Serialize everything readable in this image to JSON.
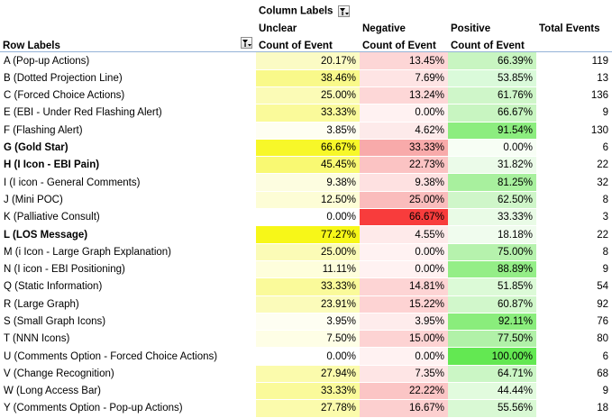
{
  "header": {
    "column_labels": "Column Labels",
    "row_labels": "Row Labels",
    "groups": [
      "Unclear",
      "Negative",
      "Positive",
      "Total Events"
    ],
    "measure": "Count of Event"
  },
  "icons": {
    "column_filter": "filter-dropdown-icon",
    "row_filter": "filter-dropdown-icon"
  },
  "rows": [
    {
      "label": "A (Pop-up Actions)",
      "bold": false,
      "unclear": "20.17%",
      "negative": "13.45%",
      "positive": "66.39%",
      "total": "119",
      "unclear_color": "#fbfbc4",
      "negative_color": "#fdd6d6",
      "positive_color": "#c8f5c1"
    },
    {
      "label": "B (Dotted Projection Line)",
      "bold": false,
      "unclear": "38.46%",
      "negative": "7.69%",
      "positive": "53.85%",
      "total": "13",
      "unclear_color": "#f9f98a",
      "negative_color": "#fee4e4",
      "positive_color": "#dafada"
    },
    {
      "label": "C (Forced Choice Actions)",
      "bold": false,
      "unclear": "25.00%",
      "negative": "13.24%",
      "positive": "61.76%",
      "total": "136",
      "unclear_color": "#fbfbb6",
      "negative_color": "#fdd7d7",
      "positive_color": "#cff6c9"
    },
    {
      "label": "E (EBI - Under Red Flashing Alert)",
      "bold": false,
      "unclear": "33.33%",
      "negative": "0.00%",
      "positive": "66.67%",
      "total": "9",
      "unclear_color": "#fafa9a",
      "negative_color": "#fff2f2",
      "positive_color": "#c8f5c1"
    },
    {
      "label": "F (Flashing Alert)",
      "bold": false,
      "unclear": "3.85%",
      "negative": "4.62%",
      "positive": "91.54%",
      "total": "130",
      "unclear_color": "#fefef2",
      "negative_color": "#fdeaea",
      "positive_color": "#8ced7f"
    },
    {
      "label": "G (Gold Star)",
      "bold": true,
      "unclear": "66.67%",
      "negative": "33.33%",
      "positive": "0.00%",
      "total": "6",
      "unclear_color": "#f7f729",
      "negative_color": "#f8aaaa",
      "positive_color": "#f7fef5"
    },
    {
      "label": "H (I Icon - EBI Pain)",
      "bold": true,
      "unclear": "45.45%",
      "negative": "22.73%",
      "positive": "31.82%",
      "total": "22",
      "unclear_color": "#f9f972",
      "negative_color": "#fbc3c3",
      "positive_color": "#ebfbe9"
    },
    {
      "label": "I (I icon - General Comments)",
      "bold": false,
      "unclear": "9.38%",
      "negative": "9.38%",
      "positive": "81.25%",
      "total": "32",
      "unclear_color": "#fdfde0",
      "negative_color": "#fee1e1",
      "positive_color": "#a8f09e"
    },
    {
      "label": "J (Mini POC)",
      "bold": false,
      "unclear": "12.50%",
      "negative": "25.00%",
      "positive": "62.50%",
      "total": "8",
      "unclear_color": "#fdfdd6",
      "negative_color": "#fabcbc",
      "positive_color": "#cff6c9"
    },
    {
      "label": "K (Palliative Consult)",
      "bold": false,
      "unclear": "0.00%",
      "negative": "66.67%",
      "positive": "33.33%",
      "total": "3",
      "unclear_color": "#ffffff",
      "negative_color": "#f83c3c",
      "positive_color": "#e9fbe6"
    },
    {
      "label": "L (LOS Message)",
      "bold": true,
      "unclear": "77.27%",
      "negative": "4.55%",
      "positive": "18.18%",
      "total": "22",
      "unclear_color": "#f7f718",
      "negative_color": "#feeaea",
      "positive_color": "#f0fcee"
    },
    {
      "label": "M (i Icon - Large Graph Explanation)",
      "bold": false,
      "unclear": "25.00%",
      "negative": "0.00%",
      "positive": "75.00%",
      "total": "8",
      "unclear_color": "#fbfbb6",
      "negative_color": "#fff2f2",
      "positive_color": "#b6f2ad"
    },
    {
      "label": "N (I icon - EBI Positioning)",
      "bold": false,
      "unclear": "11.11%",
      "negative": "0.00%",
      "positive": "88.89%",
      "total": "9",
      "unclear_color": "#fefedc",
      "negative_color": "#fff2f2",
      "positive_color": "#94ee87"
    },
    {
      "label": "Q (Static Information)",
      "bold": false,
      "unclear": "33.33%",
      "negative": "14.81%",
      "positive": "51.85%",
      "total": "54",
      "unclear_color": "#fafa9a",
      "negative_color": "#fdd4d4",
      "positive_color": "#dcfad7"
    },
    {
      "label": "R (Large Graph)",
      "bold": false,
      "unclear": "23.91%",
      "negative": "15.22%",
      "positive": "60.87%",
      "total": "92",
      "unclear_color": "#fbfbba",
      "negative_color": "#fdd3d3",
      "positive_color": "#d1f7cb"
    },
    {
      "label": "S (Small Graph Icons)",
      "bold": false,
      "unclear": "3.95%",
      "negative": "3.95%",
      "positive": "92.11%",
      "total": "76",
      "unclear_color": "#fefef2",
      "negative_color": "#feecec",
      "positive_color": "#8aed7c"
    },
    {
      "label": "T (NNN Icons)",
      "bold": false,
      "unclear": "7.50%",
      "negative": "15.00%",
      "positive": "77.50%",
      "total": "80",
      "unclear_color": "#fefee6",
      "negative_color": "#fdd3d3",
      "positive_color": "#b1f1a8"
    },
    {
      "label": "U (Comments Option - Forced Choice Actions)",
      "bold": false,
      "unclear": "0.00%",
      "negative": "0.00%",
      "positive": "100.00%",
      "total": "6",
      "unclear_color": "#ffffff",
      "negative_color": "#fff2f2",
      "positive_color": "#63e852"
    },
    {
      "label": "V (Change Recognition)",
      "bold": false,
      "unclear": "27.94%",
      "negative": "7.35%",
      "positive": "64.71%",
      "total": "68",
      "unclear_color": "#fbfbac",
      "negative_color": "#fee5e5",
      "positive_color": "#cbf6c5"
    },
    {
      "label": "W (Long Access Bar)",
      "bold": false,
      "unclear": "33.33%",
      "negative": "22.22%",
      "positive": "44.44%",
      "total": "9",
      "unclear_color": "#fafa9a",
      "negative_color": "#fbc5c5",
      "positive_color": "#e2fbde"
    },
    {
      "label": "Y (Comments Option - Pop-up Actions)",
      "bold": false,
      "unclear": "27.78%",
      "negative": "16.67%",
      "positive": "55.56%",
      "total": "18",
      "unclear_color": "#fbfbac",
      "negative_color": "#fccfcf",
      "positive_color": "#d9f9d4"
    }
  ]
}
